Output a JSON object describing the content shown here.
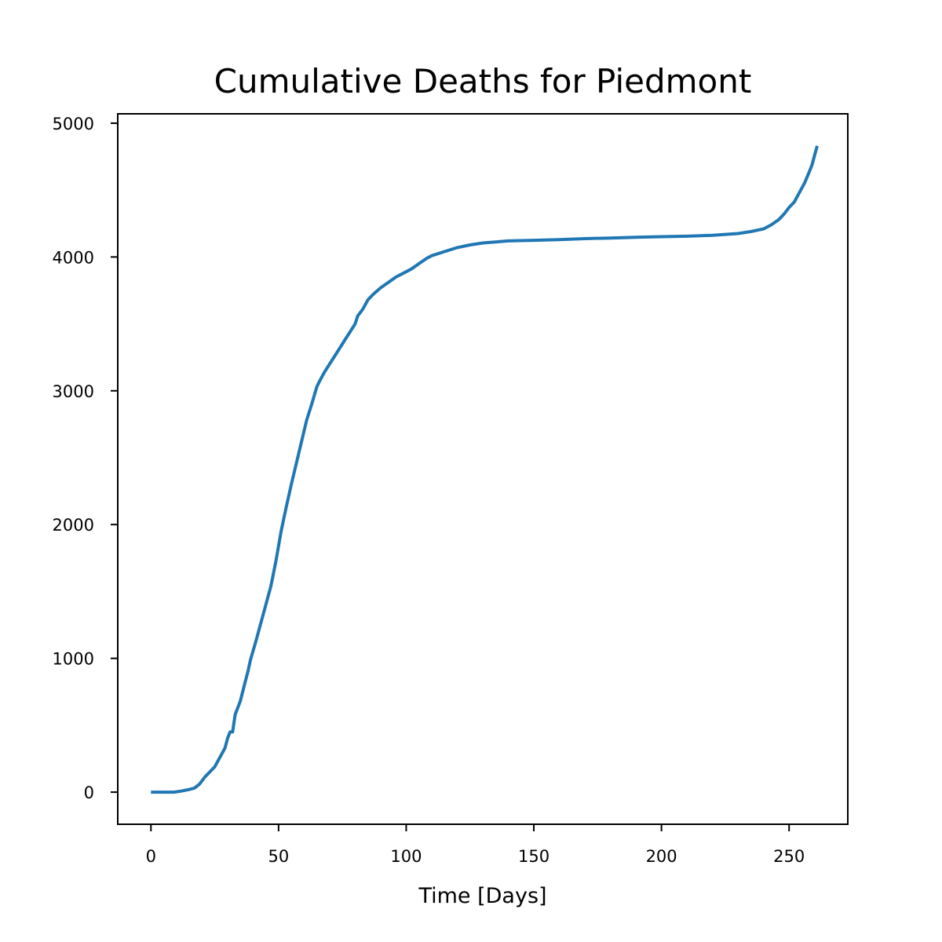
{
  "chart_data": {
    "type": "line",
    "title": "Cumulative Deaths for Piedmont",
    "xlabel": "Time [Days]",
    "ylabel": "",
    "xlim": [
      -13,
      273
    ],
    "ylim": [
      -240,
      5070
    ],
    "xticks": [
      0,
      50,
      100,
      150,
      200,
      250
    ],
    "yticks": [
      0,
      1000,
      2000,
      3000,
      4000,
      5000
    ],
    "grid": false,
    "series": [
      {
        "color": "#1f77b4",
        "points": [
          [
            0,
            0
          ],
          [
            5,
            0
          ],
          [
            9,
            0
          ],
          [
            12,
            8
          ],
          [
            15,
            20
          ],
          [
            17,
            30
          ],
          [
            19,
            60
          ],
          [
            21,
            110
          ],
          [
            23,
            150
          ],
          [
            25,
            190
          ],
          [
            27,
            260
          ],
          [
            29,
            330
          ],
          [
            30,
            400
          ],
          [
            31,
            450
          ],
          [
            32,
            450
          ],
          [
            33,
            580
          ],
          [
            35,
            680
          ],
          [
            37,
            830
          ],
          [
            38,
            900
          ],
          [
            39,
            990
          ],
          [
            41,
            1120
          ],
          [
            43,
            1260
          ],
          [
            45,
            1400
          ],
          [
            47,
            1540
          ],
          [
            49,
            1730
          ],
          [
            51,
            1950
          ],
          [
            53,
            2130
          ],
          [
            55,
            2300
          ],
          [
            57,
            2460
          ],
          [
            59,
            2620
          ],
          [
            61,
            2780
          ],
          [
            63,
            2900
          ],
          [
            65,
            3030
          ],
          [
            66,
            3070
          ],
          [
            68,
            3140
          ],
          [
            70,
            3200
          ],
          [
            72,
            3260
          ],
          [
            74,
            3320
          ],
          [
            76,
            3380
          ],
          [
            78,
            3440
          ],
          [
            80,
            3500
          ],
          [
            81,
            3560
          ],
          [
            83,
            3610
          ],
          [
            85,
            3680
          ],
          [
            87,
            3720
          ],
          [
            90,
            3770
          ],
          [
            93,
            3810
          ],
          [
            96,
            3850
          ],
          [
            99,
            3880
          ],
          [
            102,
            3910
          ],
          [
            105,
            3950
          ],
          [
            108,
            3990
          ],
          [
            110,
            4010
          ],
          [
            115,
            4040
          ],
          [
            120,
            4070
          ],
          [
            125,
            4090
          ],
          [
            130,
            4105
          ],
          [
            140,
            4120
          ],
          [
            150,
            4125
          ],
          [
            160,
            4130
          ],
          [
            170,
            4137
          ],
          [
            180,
            4142
          ],
          [
            190,
            4147
          ],
          [
            200,
            4152
          ],
          [
            210,
            4155
          ],
          [
            220,
            4162
          ],
          [
            230,
            4175
          ],
          [
            235,
            4190
          ],
          [
            240,
            4210
          ],
          [
            243,
            4240
          ],
          [
            246,
            4280
          ],
          [
            248,
            4320
          ],
          [
            250,
            4370
          ],
          [
            252,
            4410
          ],
          [
            254,
            4480
          ],
          [
            256,
            4550
          ],
          [
            258,
            4640
          ],
          [
            259,
            4690
          ],
          [
            260,
            4760
          ],
          [
            261,
            4830
          ]
        ]
      }
    ]
  }
}
